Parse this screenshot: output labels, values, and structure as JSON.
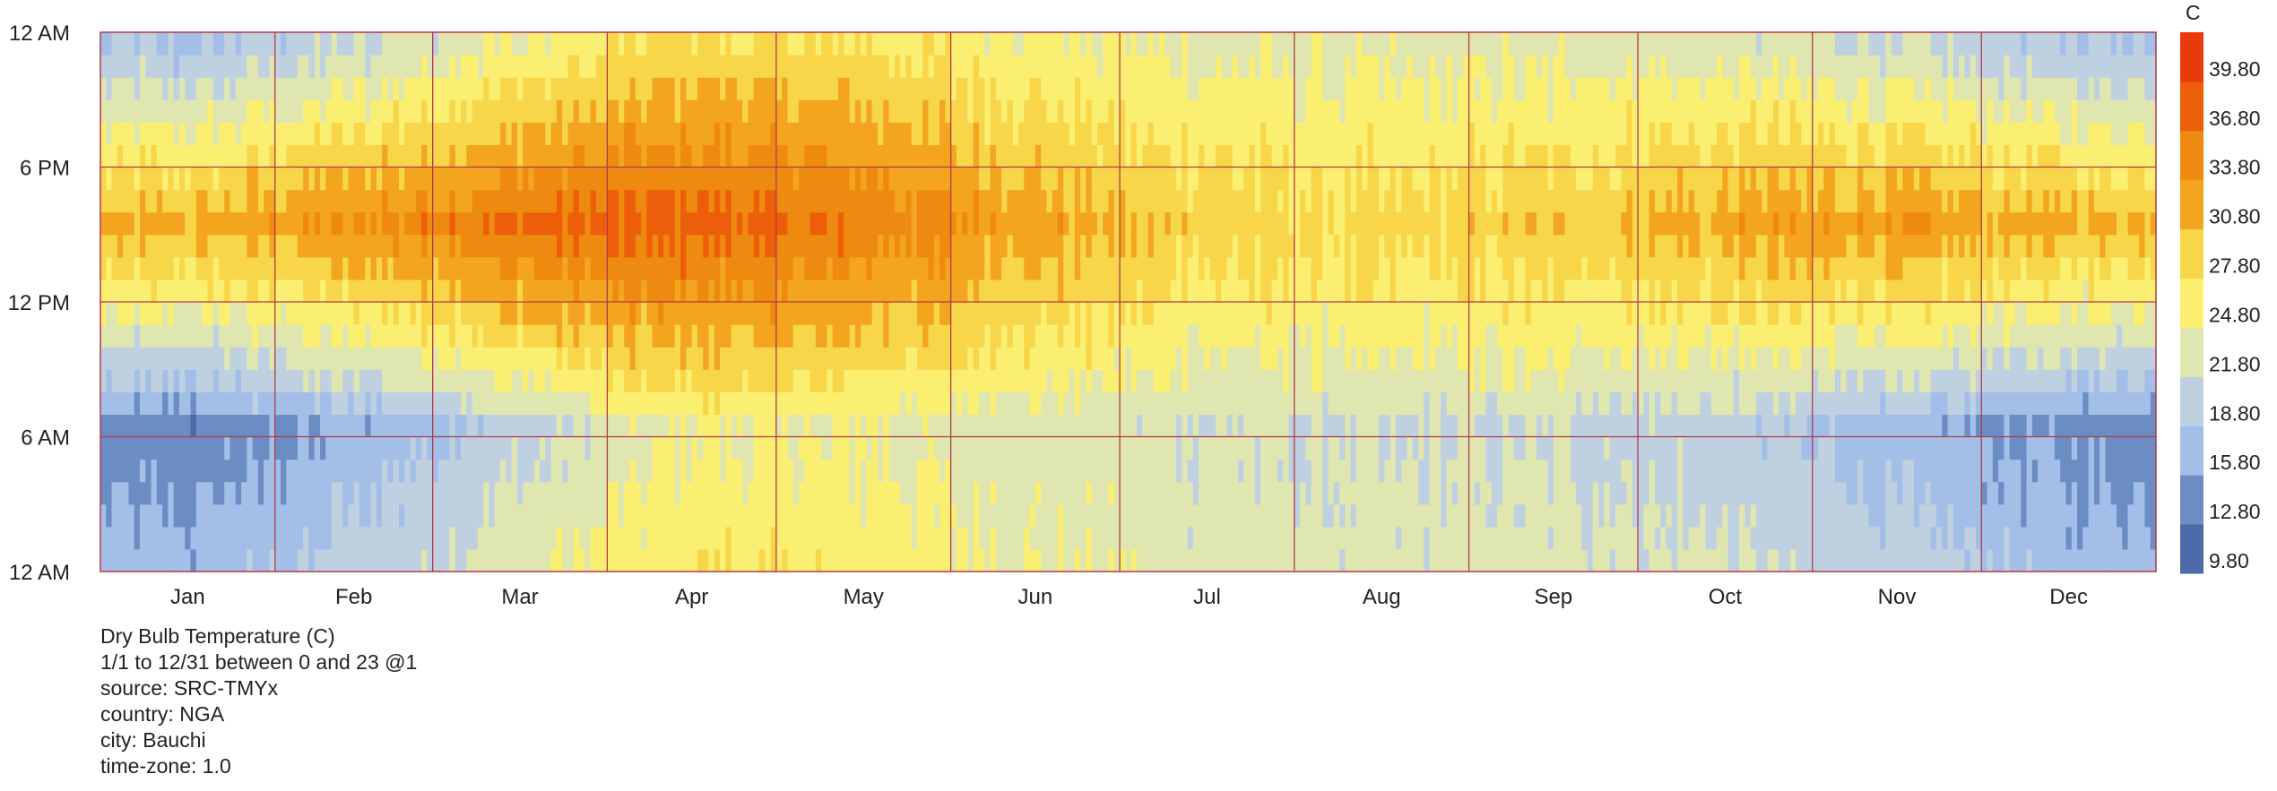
{
  "chart_data": {
    "type": "heatmap",
    "title": "Dry Bulb Temperature (C)",
    "x_axis": {
      "tick_labels": [
        "Jan",
        "Feb",
        "Mar",
        "Apr",
        "May",
        "Jun",
        "Jul",
        "Aug",
        "Sep",
        "Oct",
        "Nov",
        "Dec"
      ],
      "month_days": [
        31,
        28,
        31,
        30,
        31,
        30,
        31,
        31,
        30,
        31,
        30,
        31
      ]
    },
    "y_axis": {
      "tick_labels": [
        "12 AM",
        "6 AM",
        "12 PM",
        "6 PM",
        "12 AM"
      ],
      "range_hours": [
        0,
        24
      ]
    },
    "legend": {
      "unit": "C",
      "placement": "right",
      "tick_labels": [
        "9.80",
        "12.80",
        "15.80",
        "18.80",
        "21.80",
        "24.80",
        "27.80",
        "30.80",
        "33.80",
        "36.80",
        "39.80"
      ],
      "colors": [
        "#4a6aa8",
        "#6b8dc4",
        "#a3bfe8",
        "#bfd1e0",
        "#dfe6b0",
        "#fbef72",
        "#f7d64a",
        "#f3a51f",
        "#ef8a10",
        "#ec5e0a",
        "#e93a0c"
      ]
    },
    "grid": true,
    "grid_color": "#b03a4a",
    "approx_monthly_profile": {
      "night_min_c": [
        13.5,
        16.5,
        20.5,
        25.0,
        24.5,
        23.0,
        22.0,
        21.5,
        21.5,
        20.0,
        17.0,
        14.5
      ],
      "afternoon_max_c": [
        31.5,
        34.0,
        37.0,
        38.0,
        36.0,
        32.5,
        29.5,
        28.5,
        30.0,
        32.0,
        33.0,
        31.5
      ]
    }
  },
  "info": {
    "title": "Dry Bulb Temperature (C)",
    "range": "1/1 to 12/31 between 0 and 23 @1",
    "source": "source: SRC-TMYx",
    "country": "country: NGA",
    "city": "city: Bauchi",
    "timezone": "time-zone: 1.0"
  }
}
